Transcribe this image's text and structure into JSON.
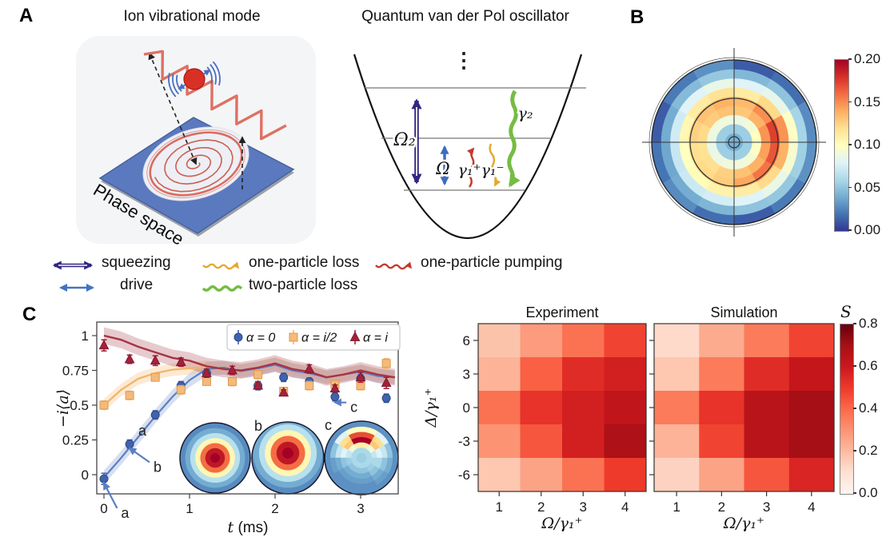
{
  "panel_a": {
    "label": "A",
    "left_title": "Ion vibrational mode",
    "right_title": "Quantum van der Pol oscillator",
    "phase_space_label": "Phase space",
    "energy_labels": {
      "squeeze": "Ω₂",
      "drive": "Ω",
      "pump": "γ₁⁺",
      "loss1": "γ₁⁻",
      "loss2": "γ₂",
      "dots": "⋮"
    }
  },
  "panel_b": {
    "label": "B",
    "colorbar_ticks": [
      "0.20",
      "0.15",
      "0.10",
      "0.05",
      "0.00"
    ]
  },
  "panel_c": {
    "label": "C"
  },
  "process_legend": {
    "rows": [
      [
        {
          "icon": "squeezing-arrow",
          "label": "squeezing"
        },
        {
          "icon": "one-particle-loss-wave",
          "label": "one-particle loss"
        },
        {
          "icon": "one-particle-pumping-wave",
          "label": "one-particle pumping"
        }
      ],
      [
        {
          "icon": "drive-arrow",
          "label": "drive"
        },
        {
          "icon": "two-particle-loss-wave",
          "label": "two-particle loss"
        }
      ]
    ]
  },
  "colors": {
    "squeezing": "#312783",
    "drive": "#4472C4",
    "one_particle_loss": "#E3A92E",
    "two_particle_loss": "#76BC43",
    "one_particle_pumping": "#C23B2B",
    "series_alpha0": "#3F63AE",
    "series_alpha_i2": "#F4BA7A",
    "series_alpha_i": "#A62139"
  },
  "heatmap_colorbar": {
    "label": "S",
    "ticks": [
      "0.8",
      "0.6",
      "0.4",
      "0.2",
      "0.0"
    ]
  },
  "chart_data": [
    {
      "id": "wigner_phase_space",
      "type": "heatmap",
      "subtype": "polar",
      "colormap": "RdYlBu_r",
      "vmin": 0.0,
      "vmax": 0.2,
      "colorbar_ticks": [
        0.2,
        0.15,
        0.1,
        0.05,
        0.0
      ],
      "sectors": 12,
      "rings": [
        0.042,
        0.055,
        [
          0.1,
          0.092,
          0.088,
          0.09,
          0.09,
          0.088,
          0.086,
          0.088,
          0.09,
          0.09,
          0.092,
          0.098
        ],
        [
          0.148,
          0.138,
          0.13,
          0.132,
          0.128,
          0.122,
          0.118,
          0.12,
          0.126,
          0.132,
          0.138,
          0.144
        ],
        [
          0.175,
          0.15,
          0.135,
          0.138,
          0.132,
          0.126,
          0.12,
          0.122,
          0.128,
          0.142,
          0.158,
          0.168
        ],
        [
          0.148,
          0.122,
          0.112,
          0.118,
          0.112,
          0.105,
          0.1,
          0.102,
          0.108,
          0.112,
          0.122,
          0.138
        ],
        [
          0.098,
          0.085,
          0.08,
          0.086,
          0.08,
          0.074,
          0.07,
          0.072,
          0.076,
          0.08,
          0.086,
          0.094
        ],
        [
          0.058,
          0.05,
          0.045,
          0.052,
          0.046,
          0.04,
          0.038,
          0.04,
          0.044,
          0.05,
          0.052,
          0.056
        ],
        [
          0.028,
          0.018,
          0.012,
          0.03,
          0.022,
          0.012,
          0.02,
          0.028,
          0.018,
          0.012,
          0.022,
          0.03
        ]
      ]
    },
    {
      "id": "dynamics",
      "type": "line",
      "xlabel": "t (ms)",
      "xlabel_italic_first": true,
      "ylabel": "−i⟨a⟩",
      "xticks": [
        0,
        1,
        2,
        3
      ],
      "yticks": [
        0,
        0.25,
        0.5,
        0.75,
        1
      ],
      "ytick_labels": [
        "0",
        "0.25",
        "0.5",
        "0.75",
        "1"
      ],
      "xlim": [
        -0.12,
        3.45
      ],
      "ylim": [
        -0.14,
        1.1
      ],
      "x": [
        0,
        0.3,
        0.6,
        0.9,
        1.2,
        1.5,
        1.8,
        2.1,
        2.4,
        2.7,
        3.0,
        3.3
      ],
      "series": [
        {
          "name": "α = 0",
          "marker": "circle",
          "color": "#3F63AE",
          "values": [
            -0.03,
            0.22,
            0.43,
            0.64,
            0.73,
            0.67,
            0.64,
            0.7,
            0.67,
            0.56,
            0.69,
            0.55
          ],
          "errors": [
            0.04,
            0.03,
            0.03,
            0.03,
            0.03,
            0.025,
            0.03,
            0.03,
            0.025,
            0.03,
            0.03,
            0.03
          ]
        },
        {
          "name": "α = i/2",
          "marker": "square",
          "color": "#F4BA7A",
          "values": [
            0.5,
            0.57,
            0.7,
            0.61,
            0.67,
            0.67,
            0.72,
            0.6,
            0.64,
            0.65,
            0.64,
            0.8
          ],
          "errors": [
            0.03,
            0.03,
            0.025,
            0.03,
            0.025,
            0.03,
            0.03,
            0.025,
            0.03,
            0.025,
            0.03,
            0.035
          ]
        },
        {
          "name": "α = i",
          "marker": "triangle",
          "color": "#A62139",
          "values": [
            0.93,
            0.83,
            0.82,
            0.81,
            0.73,
            0.75,
            0.64,
            0.59,
            0.76,
            0.62,
            0.7,
            0.66
          ],
          "errors": [
            0.04,
            0.03,
            0.035,
            0.03,
            0.03,
            0.03,
            0.025,
            0.02,
            0.03,
            0.025,
            0.035,
            0.04
          ]
        }
      ],
      "trend_t": [
        0,
        0.2,
        0.4,
        0.6,
        0.8,
        1.0,
        1.2,
        1.4,
        1.6,
        1.8,
        2.0,
        2.2,
        2.4,
        2.6,
        2.8,
        3.0,
        3.2,
        3.4
      ],
      "trends": {
        "alpha0": [
          -0.02,
          0.12,
          0.27,
          0.42,
          0.56,
          0.68,
          0.76,
          0.77,
          0.745,
          0.765,
          0.79,
          0.75,
          0.73,
          0.7,
          0.72,
          0.74,
          0.71,
          0.7
        ],
        "alpha_i2": [
          0.5,
          0.61,
          0.69,
          0.73,
          0.755,
          0.765,
          0.775,
          0.765,
          0.75,
          0.77,
          0.8,
          0.76,
          0.74,
          0.7,
          0.72,
          0.75,
          0.72,
          0.7
        ],
        "alpha_i": [
          1.0,
          0.97,
          0.92,
          0.88,
          0.84,
          0.82,
          0.78,
          0.76,
          0.75,
          0.77,
          0.8,
          0.76,
          0.74,
          0.7,
          0.72,
          0.75,
          0.72,
          0.7
        ]
      },
      "band_halfwidth": {
        "alpha0": 0.05,
        "alpha_i2": 0.045,
        "alpha_i": 0.06
      },
      "annotations": [
        {
          "text": "a",
          "text_t": 0.2,
          "text_v": -0.31,
          "point_t": 0.0,
          "point_v": -0.06
        },
        {
          "text": "b",
          "text_t": 0.58,
          "text_v": 0.02,
          "point_t": 0.3,
          "point_v": 0.19
        },
        {
          "text": "c",
          "text_t": 2.88,
          "text_v": 0.45,
          "point_t": 2.7,
          "point_v": 0.52
        }
      ],
      "insets": [
        {
          "label": "a",
          "vmax": 0.2,
          "shift_y": 0,
          "rings": [
            0.2,
            0.19,
            0.16,
            0.105,
            0.065,
            0.04,
            0.028
          ]
        },
        {
          "label": "b",
          "vmax": 0.2,
          "shift_y": -6,
          "rings": [
            0.2,
            0.19,
            0.16,
            0.105,
            0.065,
            0.04,
            0.028
          ]
        },
        {
          "label": "c",
          "vmax": 0.2,
          "shift_y": 0,
          "rings": [
            0.055,
            0.06,
            [
              0.07,
              0.09,
              0.11,
              0.11,
              0.09,
              0.07,
              0.055,
              0.05,
              0.05,
              0.05,
              0.055,
              0.06
            ],
            [
              0.08,
              0.13,
              0.2,
              0.2,
              0.13,
              0.08,
              0.05,
              0.04,
              0.04,
              0.04,
              0.05,
              0.06
            ],
            [
              0.07,
              0.12,
              0.17,
              0.17,
              0.12,
              0.07,
              0.04,
              0.035,
              0.035,
              0.035,
              0.04,
              0.05
            ],
            [
              0.05,
              0.08,
              0.1,
              0.1,
              0.08,
              0.05,
              0.035,
              0.03,
              0.03,
              0.03,
              0.035,
              0.04
            ],
            0.03
          ]
        }
      ]
    },
    {
      "id": "experiment_map",
      "type": "heatmap",
      "title": "Experiment",
      "xlabel": "Ω/γ₁⁺",
      "ylabel": "Δ/γ₁⁺",
      "xticks": [
        1,
        2,
        3,
        4
      ],
      "yticks": [
        6,
        3,
        0,
        -3,
        -6
      ],
      "vmin": 0.0,
      "vmax": 0.8,
      "colormap": "Reds",
      "values": [
        [
          0.18,
          0.28,
          0.38,
          0.48
        ],
        [
          0.22,
          0.42,
          0.54,
          0.58
        ],
        [
          0.38,
          0.52,
          0.58,
          0.63
        ],
        [
          0.3,
          0.44,
          0.58,
          0.68
        ],
        [
          0.17,
          0.26,
          0.38,
          0.5
        ]
      ]
    },
    {
      "id": "simulation_map",
      "type": "heatmap",
      "title": "Simulation",
      "xlabel": "Ω/γ₁⁺",
      "ylabel": "",
      "xticks": [
        1,
        2,
        3,
        4
      ],
      "yticks": [
        6,
        3,
        0,
        -3,
        -6
      ],
      "vmin": 0.0,
      "vmax": 0.8,
      "colormap": "Reds",
      "values": [
        [
          0.12,
          0.24,
          0.36,
          0.48
        ],
        [
          0.17,
          0.36,
          0.54,
          0.62
        ],
        [
          0.36,
          0.52,
          0.65,
          0.7
        ],
        [
          0.22,
          0.48,
          0.65,
          0.7
        ],
        [
          0.14,
          0.26,
          0.44,
          0.56
        ]
      ]
    }
  ]
}
